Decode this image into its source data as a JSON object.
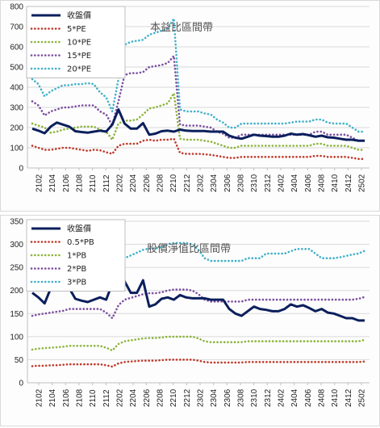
{
  "chart_data": [
    {
      "type": "line",
      "title": "本益比區間帶",
      "ylim": [
        0,
        800
      ],
      "yticks": [
        0,
        100,
        200,
        300,
        400,
        500,
        600,
        700,
        800
      ],
      "grid": true,
      "legend_position": "top-left",
      "x_tick_labels": [
        "2102",
        "2104",
        "2106",
        "2108",
        "2110",
        "2112",
        "2202",
        "2204",
        "2206",
        "2208",
        "2210",
        "2212",
        "2302",
        "2304",
        "2306",
        "2308",
        "2310",
        "2312",
        "2402",
        "2404",
        "2406",
        "2408",
        "2410",
        "2412",
        "2502"
      ],
      "series": [
        {
          "name": "收盤價",
          "color": "#0b1f5c",
          "style": "solid",
          "values": [
            195,
            185,
            172,
            205,
            225,
            215,
            205,
            182,
            178,
            175,
            180,
            185,
            180,
            215,
            290,
            220,
            195,
            195,
            222,
            165,
            170,
            182,
            185,
            180,
            190,
            185,
            183,
            183,
            183,
            180,
            180,
            180,
            160,
            150,
            145,
            155,
            165,
            160,
            158,
            155,
            155,
            160,
            170,
            165,
            168,
            162,
            155,
            160,
            152,
            150,
            145,
            140,
            140,
            135,
            135
          ]
        },
        {
          "name": "5*PE",
          "color": "#c0392b",
          "style": "dotted",
          "values": [
            110,
            100,
            90,
            90,
            95,
            100,
            100,
            95,
            90,
            85,
            90,
            88,
            78,
            70,
            110,
            120,
            120,
            120,
            135,
            140,
            135,
            140,
            140,
            145,
            75,
            70,
            70,
            70,
            68,
            65,
            60,
            55,
            50,
            50,
            55,
            55,
            55,
            55,
            55,
            55,
            55,
            55,
            55,
            55,
            55,
            55,
            60,
            60,
            55,
            55,
            55,
            55,
            50,
            45,
            45
          ]
        },
        {
          "name": "10*PE",
          "color": "#8db43c",
          "style": "dotted",
          "values": [
            220,
            210,
            200,
            175,
            180,
            190,
            195,
            200,
            205,
            205,
            205,
            190,
            180,
            140,
            220,
            235,
            235,
            240,
            265,
            295,
            300,
            310,
            320,
            370,
            145,
            140,
            140,
            140,
            135,
            130,
            120,
            110,
            100,
            100,
            110,
            110,
            110,
            110,
            110,
            110,
            110,
            110,
            110,
            110,
            110,
            110,
            120,
            120,
            110,
            110,
            110,
            110,
            100,
            90,
            90
          ]
        },
        {
          "name": "15*PE",
          "color": "#7b4fa0",
          "style": "dotted",
          "values": [
            330,
            310,
            260,
            280,
            290,
            300,
            300,
            305,
            310,
            310,
            310,
            280,
            265,
            210,
            330,
            460,
            470,
            470,
            475,
            500,
            505,
            510,
            520,
            555,
            215,
            210,
            210,
            210,
            205,
            200,
            180,
            170,
            150,
            150,
            165,
            165,
            165,
            165,
            165,
            165,
            165,
            165,
            165,
            165,
            165,
            165,
            180,
            180,
            165,
            165,
            165,
            165,
            150,
            135,
            135
          ]
        },
        {
          "name": "20*PE",
          "color": "#3fb0c9",
          "style": "dotted",
          "values": [
            440,
            415,
            355,
            380,
            395,
            410,
            410,
            415,
            415,
            420,
            415,
            375,
            350,
            280,
            440,
            610,
            625,
            630,
            635,
            660,
            670,
            680,
            690,
            740,
            290,
            280,
            280,
            280,
            270,
            265,
            240,
            225,
            200,
            200,
            220,
            220,
            220,
            220,
            220,
            220,
            220,
            220,
            225,
            230,
            230,
            230,
            240,
            240,
            225,
            220,
            220,
            220,
            200,
            180,
            180
          ]
        }
      ]
    },
    {
      "type": "line",
      "title": "股價淨值比區間帶",
      "ylim": [
        0,
        350
      ],
      "yticks": [
        0,
        50,
        100,
        150,
        200,
        250,
        300,
        350
      ],
      "grid": true,
      "legend_position": "top-left",
      "x_tick_labels": [
        "2102",
        "2104",
        "2106",
        "2108",
        "2110",
        "2112",
        "2202",
        "2204",
        "2206",
        "2208",
        "2210",
        "2212",
        "2302",
        "2304",
        "2306",
        "2308",
        "2310",
        "2312",
        "2402",
        "2404",
        "2406",
        "2408",
        "2410",
        "2412",
        "2502"
      ],
      "series": [
        {
          "name": "收盤價",
          "color": "#0b1f5c",
          "style": "solid",
          "values": [
            195,
            185,
            172,
            205,
            225,
            215,
            205,
            182,
            178,
            175,
            180,
            185,
            180,
            215,
            290,
            220,
            195,
            195,
            222,
            165,
            170,
            182,
            185,
            180,
            190,
            185,
            183,
            183,
            183,
            180,
            180,
            180,
            160,
            150,
            145,
            155,
            165,
            160,
            158,
            155,
            155,
            160,
            170,
            165,
            168,
            162,
            155,
            160,
            152,
            150,
            145,
            140,
            140,
            135,
            135
          ]
        },
        {
          "name": "0.5*PB",
          "color": "#c0392b",
          "style": "dotted",
          "values": [
            36,
            37,
            37,
            38,
            38,
            39,
            40,
            40,
            40,
            40,
            40,
            40,
            38,
            35,
            42,
            45,
            46,
            47,
            48,
            48,
            48,
            49,
            50,
            50,
            50,
            50,
            50,
            48,
            45,
            44,
            44,
            44,
            44,
            44,
            44,
            45,
            45,
            45,
            45,
            45,
            45,
            45,
            45,
            45,
            45,
            45,
            45,
            45,
            45,
            45,
            45,
            45,
            45,
            45,
            46
          ]
        },
        {
          "name": "1*PB",
          "color": "#8db43c",
          "style": "dotted",
          "values": [
            72,
            74,
            75,
            76,
            77,
            78,
            80,
            80,
            80,
            80,
            80,
            80,
            76,
            70,
            84,
            90,
            92,
            94,
            96,
            97,
            97,
            98,
            100,
            100,
            100,
            100,
            100,
            96,
            90,
            88,
            88,
            88,
            88,
            88,
            88,
            90,
            90,
            90,
            90,
            90,
            90,
            90,
            90,
            90,
            90,
            90,
            90,
            90,
            90,
            90,
            90,
            90,
            90,
            90,
            93
          ]
        },
        {
          "name": "2*PB",
          "color": "#7b4fa0",
          "style": "dotted",
          "values": [
            145,
            148,
            150,
            152,
            154,
            156,
            160,
            160,
            160,
            160,
            160,
            160,
            152,
            140,
            168,
            180,
            184,
            188,
            192,
            194,
            194,
            196,
            200,
            202,
            202,
            202,
            200,
            192,
            180,
            176,
            176,
            176,
            176,
            176,
            176,
            180,
            180,
            180,
            180,
            180,
            180,
            180,
            180,
            180,
            180,
            180,
            180,
            180,
            180,
            180,
            180,
            180,
            180,
            182,
            186
          ]
        },
        {
          "name": "3*PB",
          "color": "#3fb0c9",
          "style": "dotted",
          "values": [
            217,
            222,
            225,
            228,
            231,
            234,
            240,
            240,
            240,
            240,
            240,
            240,
            228,
            210,
            252,
            270,
            276,
            282,
            288,
            291,
            291,
            294,
            300,
            303,
            303,
            303,
            300,
            288,
            270,
            264,
            264,
            264,
            264,
            264,
            264,
            270,
            270,
            270,
            280,
            280,
            280,
            280,
            285,
            290,
            290,
            290,
            280,
            270,
            270,
            270,
            272,
            275,
            278,
            280,
            286
          ]
        }
      ]
    }
  ]
}
